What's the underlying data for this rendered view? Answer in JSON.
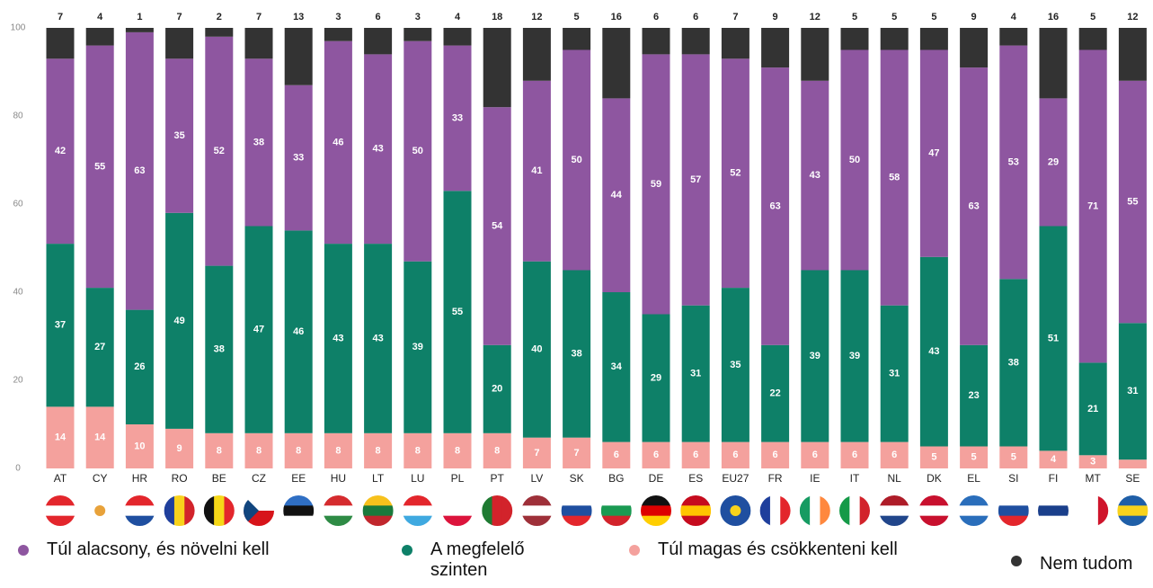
{
  "chart_data": {
    "type": "stacked_bar",
    "categories": [
      "AT",
      "CY",
      "HR",
      "RO",
      "BE",
      "CZ",
      "EE",
      "HU",
      "LT",
      "LU",
      "PL",
      "PT",
      "LV",
      "SK",
      "BG",
      "DE",
      "ES",
      "EU27",
      "FR",
      "IE",
      "IT",
      "NL",
      "DK",
      "EL",
      "SI",
      "FI",
      "MT",
      "SE"
    ],
    "series": [
      {
        "name": "Túl alacsony, és növelni kell",
        "color": "#8e56a0",
        "values": [
          42,
          55,
          63,
          35,
          52,
          38,
          33,
          46,
          43,
          50,
          33,
          54,
          41,
          50,
          44,
          59,
          57,
          52,
          63,
          43,
          50,
          58,
          47,
          63,
          53,
          29,
          71,
          55
        ]
      },
      {
        "name": "A megfelelő szinten",
        "color": "#0e8068",
        "values": [
          37,
          27,
          26,
          49,
          38,
          47,
          46,
          43,
          43,
          39,
          55,
          20,
          40,
          38,
          34,
          29,
          31,
          35,
          22,
          39,
          39,
          31,
          43,
          23,
          38,
          51,
          21,
          31
        ]
      },
      {
        "name": "Túl magas és csökkenteni kell",
        "color": "#f4a19d",
        "values": [
          14,
          14,
          10,
          9,
          8,
          8,
          8,
          8,
          8,
          8,
          8,
          8,
          7,
          7,
          6,
          6,
          6,
          6,
          6,
          6,
          6,
          6,
          5,
          5,
          5,
          4,
          3,
          2
        ]
      },
      {
        "name": "Nem tudom",
        "color": "#333333",
        "values": [
          7,
          4,
          1,
          7,
          2,
          7,
          13,
          3,
          6,
          3,
          4,
          18,
          12,
          5,
          16,
          6,
          6,
          7,
          9,
          12,
          5,
          5,
          5,
          9,
          4,
          16,
          5,
          12
        ]
      }
    ],
    "ylim": [
      0,
      100
    ],
    "yticks": [
      0,
      20,
      40,
      60,
      80,
      100
    ],
    "grid": false
  }
}
